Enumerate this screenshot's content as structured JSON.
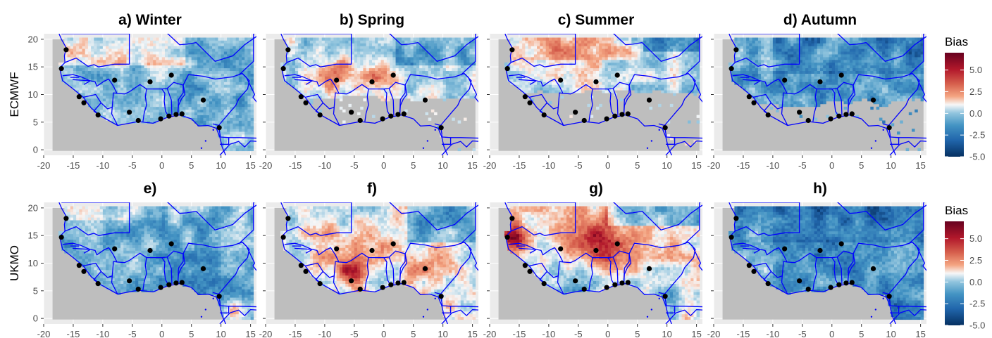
{
  "figure": {
    "row_labels": [
      "ECMWF",
      "UKMO"
    ],
    "legend_title": "Bias",
    "colorbar_ticks": [
      "5.0",
      "2.5",
      "0.0",
      "-2.5",
      "-5.0"
    ],
    "colors": {
      "low": "#053061",
      "mid": "#f7f7f7",
      "high": "#67001f",
      "mask": "#bebebe",
      "panel_bg": "#ebebeb",
      "borders": "#0000ff",
      "stations": "#000000"
    }
  },
  "chart_data": {
    "type": "heatmap",
    "variable": "Bias",
    "color_range": [
      -5,
      5
    ],
    "xlim": [
      -20,
      16
    ],
    "ylim": [
      -1,
      21
    ],
    "x_ticks": [
      -20,
      -15,
      -10,
      -5,
      0,
      5,
      10,
      15
    ],
    "y_ticks": [
      0,
      5,
      10,
      15,
      20
    ],
    "panels": [
      {
        "title": "a) Winter",
        "model": "ECMWF",
        "season": "Winter"
      },
      {
        "title": "b) Spring",
        "model": "ECMWF",
        "season": "Spring"
      },
      {
        "title": "c) Summer",
        "model": "ECMWF",
        "season": "Summer"
      },
      {
        "title": "d) Autumn",
        "model": "ECMWF",
        "season": "Autumn"
      },
      {
        "title": "e)",
        "model": "UKMO",
        "season": "Winter"
      },
      {
        "title": "f)",
        "model": "UKMO",
        "season": "Spring"
      },
      {
        "title": "g)",
        "model": "UKMO",
        "season": "Summer"
      },
      {
        "title": "h)",
        "model": "UKMO",
        "season": "Autumn"
      }
    ],
    "stations": [
      [
        -17.0,
        14.7
      ],
      [
        -16.2,
        18.1
      ],
      [
        -14.0,
        9.6
      ],
      [
        -13.2,
        8.5
      ],
      [
        -10.8,
        6.3
      ],
      [
        -8.0,
        12.6
      ],
      [
        -5.5,
        6.8
      ],
      [
        -4.0,
        5.3
      ],
      [
        -2.0,
        12.3
      ],
      [
        -0.2,
        5.6
      ],
      [
        1.2,
        6.1
      ],
      [
        1.6,
        13.5
      ],
      [
        2.4,
        6.4
      ],
      [
        3.4,
        6.5
      ],
      [
        7.0,
        9.0
      ],
      [
        9.7,
        4.0
      ]
    ]
  }
}
